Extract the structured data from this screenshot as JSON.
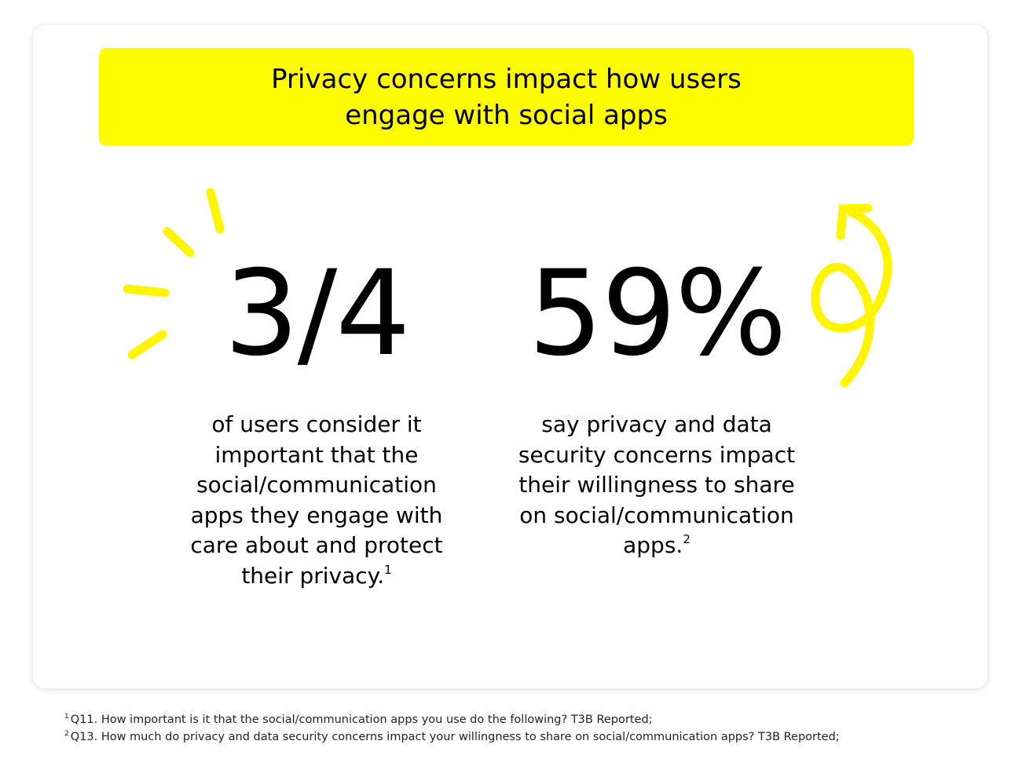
{
  "header": {
    "title": "Privacy concerns impact how users engage with social apps"
  },
  "stats": [
    {
      "value": "3/4",
      "text": "of users consider it important that the social/communication apps they engage with care about and protect their privacy.",
      "note": "1"
    },
    {
      "value": "59%",
      "text": "say privacy and data security concerns impact their willingness to share on social/communication apps.",
      "note": "2"
    }
  ],
  "footnotes": [
    {
      "note": "1",
      "text": "Q11. How important is it that the social/communication apps you use do the following? T3B Reported;"
    },
    {
      "note": "2",
      "text": "Q13. How much do privacy and data security concerns impact your willingness to share on social/communication apps? T3B Reported;"
    }
  ]
}
